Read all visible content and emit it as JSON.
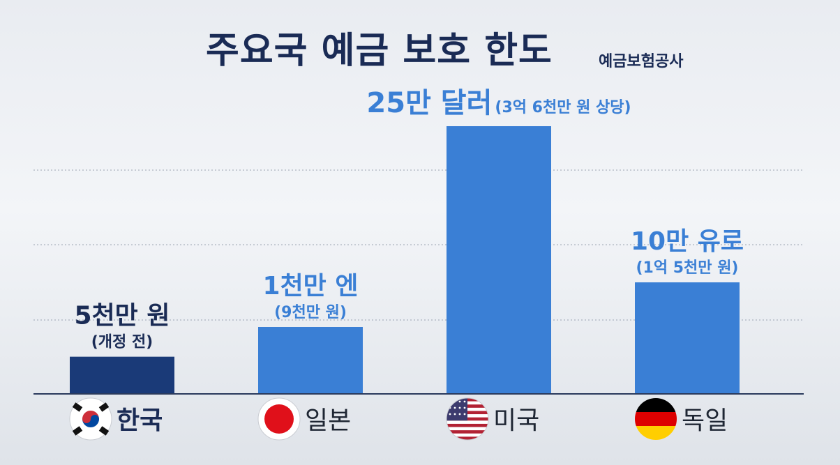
{
  "chart_data": {
    "type": "bar",
    "title": "주요국 예금 보호 한도",
    "source": "예금보험공사",
    "categories": [
      "한국",
      "일본",
      "미국",
      "독일"
    ],
    "values": [
      50000000,
      90000000,
      360000000,
      150000000
    ],
    "value_unit": "원",
    "labels": [
      "5천만 원",
      "1천만 엔",
      "25만 달러",
      "10만 유로"
    ],
    "sublabels": [
      "(개정 전)",
      "(9천만 원)",
      "(3억 6천만 원 상당)",
      "(1억 5천만 원)"
    ],
    "bar_colors": [
      "#1a3a78",
      "#3a7fd5",
      "#3a7fd5",
      "#3a7fd5"
    ],
    "label_colors": [
      "#1a2b55",
      "#3a7fd5",
      "#3a7fd5",
      "#3a7fd5"
    ],
    "icons": [
      "flag-korea-icon",
      "flag-japan-icon",
      "flag-usa-icon",
      "flag-germany-icon"
    ],
    "ylim": [
      0,
      360000000
    ],
    "grid": true,
    "xlabel": "",
    "ylabel": ""
  }
}
